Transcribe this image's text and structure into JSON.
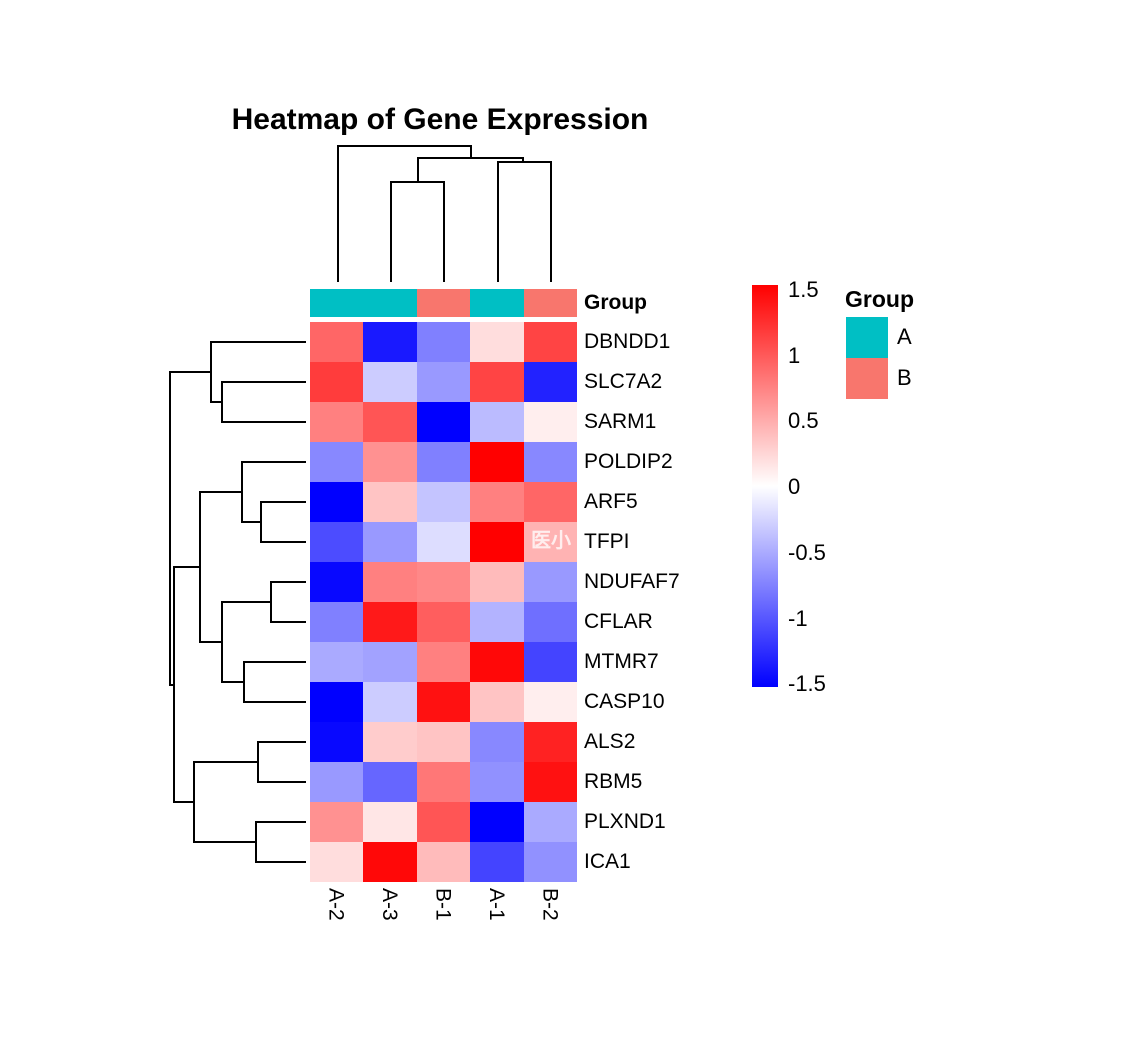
{
  "title": "Heatmap of Gene Expression",
  "watermark": "医小",
  "chart_data": {
    "type": "heatmap",
    "title": "Heatmap of Gene Expression",
    "columns": [
      "A-2",
      "A-3",
      "B-1",
      "A-1",
      "B-2"
    ],
    "rows": [
      "DBNDD1",
      "SLC7A2",
      "SARM1",
      "POLDIP2",
      "ARF5",
      "TFPI",
      "NDUFAF7",
      "CFLAR",
      "MTMR7",
      "CASP10",
      "ALS2",
      "RBM5",
      "PLXND1",
      "ICA1"
    ],
    "values": [
      [
        0.9,
        -1.35,
        -0.75,
        0.2,
        1.1
      ],
      [
        1.15,
        -0.3,
        -0.6,
        1.1,
        -1.3
      ],
      [
        0.75,
        1.0,
        -1.5,
        -0.4,
        0.1
      ],
      [
        -0.7,
        0.65,
        -0.75,
        1.5,
        -0.7
      ],
      [
        -1.5,
        0.35,
        -0.35,
        0.75,
        0.9
      ],
      [
        -1.05,
        -0.6,
        -0.2,
        1.5,
        0.45
      ],
      [
        -1.45,
        0.75,
        0.7,
        0.4,
        -0.6
      ],
      [
        -0.75,
        1.35,
        0.95,
        -0.45,
        -0.85
      ],
      [
        -0.5,
        -0.55,
        0.75,
        1.45,
        -1.1
      ],
      [
        -1.5,
        -0.3,
        1.4,
        0.35,
        0.1
      ],
      [
        -1.45,
        0.3,
        0.35,
        -0.7,
        1.3
      ],
      [
        -0.6,
        -0.9,
        0.8,
        -0.65,
        1.4
      ],
      [
        0.65,
        0.15,
        1.0,
        -1.5,
        -0.5
      ],
      [
        0.2,
        1.45,
        0.4,
        -1.1,
        -0.65
      ]
    ],
    "value_range": [
      -1.5,
      1.5
    ],
    "colormap": {
      "low": "#0000FF",
      "mid": "#FFFFFF",
      "high": "#FF0000"
    },
    "annotation_row_label": "Group",
    "column_groups": [
      "A",
      "A",
      "B",
      "A",
      "B"
    ],
    "group_colors": {
      "A": "#00BFC4",
      "B": "#F8766D"
    },
    "colorbar_ticks": [
      "1.5",
      "1",
      "0.5",
      "0",
      "-0.5",
      "-1",
      "-1.5"
    ],
    "legend": {
      "title": "Group",
      "items": [
        {
          "label": "A",
          "color": "#00BFC4"
        },
        {
          "label": "B",
          "color": "#F8766D"
        }
      ]
    },
    "column_dendrogram_segments": [
      [
        337,
        145,
        472,
        145
      ],
      [
        417,
        157,
        524,
        157
      ],
      [
        390,
        181,
        445,
        181
      ],
      [
        497,
        161,
        552,
        161
      ],
      [
        337,
        145,
        337,
        282
      ],
      [
        390,
        181,
        390,
        282
      ],
      [
        443,
        181,
        443,
        282
      ],
      [
        497,
        161,
        497,
        282
      ],
      [
        550,
        161,
        550,
        282
      ],
      [
        417,
        157,
        417,
        183
      ],
      [
        522,
        157,
        522,
        163
      ],
      [
        470,
        145,
        470,
        159
      ]
    ],
    "row_dendrogram_segments": [
      [
        210,
        341,
        306,
        341
      ],
      [
        221,
        381,
        306,
        381
      ],
      [
        221,
        421,
        306,
        421
      ],
      [
        241,
        461,
        306,
        461
      ],
      [
        260,
        501,
        306,
        501
      ],
      [
        260,
        541,
        306,
        541
      ],
      [
        270,
        581,
        306,
        581
      ],
      [
        270,
        621,
        306,
        621
      ],
      [
        243,
        661,
        306,
        661
      ],
      [
        243,
        701,
        306,
        701
      ],
      [
        257,
        741,
        306,
        741
      ],
      [
        257,
        781,
        306,
        781
      ],
      [
        255,
        821,
        306,
        821
      ],
      [
        255,
        861,
        306,
        861
      ],
      [
        221,
        381,
        221,
        423
      ],
      [
        210,
        341,
        210,
        403
      ],
      [
        260,
        501,
        260,
        543
      ],
      [
        241,
        461,
        241,
        523
      ],
      [
        270,
        581,
        270,
        623
      ],
      [
        243,
        661,
        243,
        703
      ],
      [
        221,
        601,
        221,
        683
      ],
      [
        199,
        491,
        199,
        643
      ],
      [
        257,
        741,
        257,
        783
      ],
      [
        255,
        821,
        255,
        863
      ],
      [
        193,
        761,
        193,
        843
      ],
      [
        173,
        566,
        173,
        803
      ],
      [
        169,
        371,
        169,
        686
      ],
      [
        210,
        401,
        223,
        401
      ],
      [
        169,
        371,
        212,
        371
      ],
      [
        241,
        521,
        262,
        521
      ],
      [
        199,
        491,
        243,
        491
      ],
      [
        221,
        601,
        272,
        601
      ],
      [
        221,
        681,
        245,
        681
      ],
      [
        199,
        641,
        223,
        641
      ],
      [
        173,
        566,
        201,
        566
      ],
      [
        193,
        761,
        259,
        761
      ],
      [
        193,
        841,
        257,
        841
      ],
      [
        173,
        801,
        195,
        801
      ],
      [
        169,
        684,
        175,
        684
      ]
    ]
  }
}
